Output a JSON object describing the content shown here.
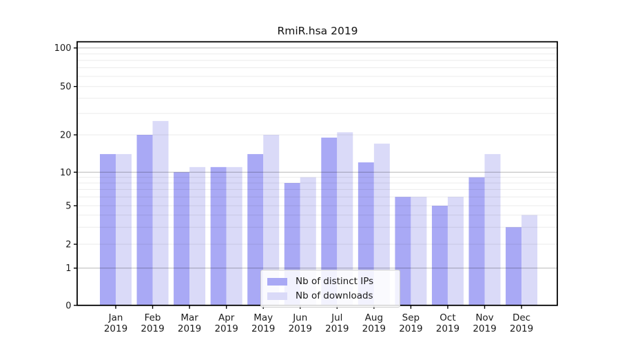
{
  "chart_data": {
    "type": "bar",
    "title": "RmiR.hsa 2019",
    "xlabel": "",
    "ylabel": "",
    "yscale": "log-like (symlog, 0 at baseline)",
    "ylim": [
      0,
      112
    ],
    "yticks": [
      0,
      1,
      2,
      5,
      10,
      20,
      50,
      100
    ],
    "grid": "horizontal major+minor, drawn over bars",
    "legend_position": "lower center",
    "categories": [
      "Jan 2019",
      "Feb 2019",
      "Mar 2019",
      "Apr 2019",
      "May 2019",
      "Jun 2019",
      "Jul 2019",
      "Aug 2019",
      "Sep 2019",
      "Oct 2019",
      "Nov 2019",
      "Dec 2019"
    ],
    "series": [
      {
        "name": "Nb of distinct IPs",
        "color": "#a9a9f5",
        "values": [
          14,
          20,
          10,
          11,
          14,
          8,
          19,
          12,
          6,
          5,
          9,
          3
        ]
      },
      {
        "name": "Nb of downloads",
        "color": "#dadaf8",
        "values": [
          14,
          26,
          11,
          11,
          20,
          9,
          21,
          17,
          6,
          6,
          14,
          4
        ]
      }
    ]
  }
}
